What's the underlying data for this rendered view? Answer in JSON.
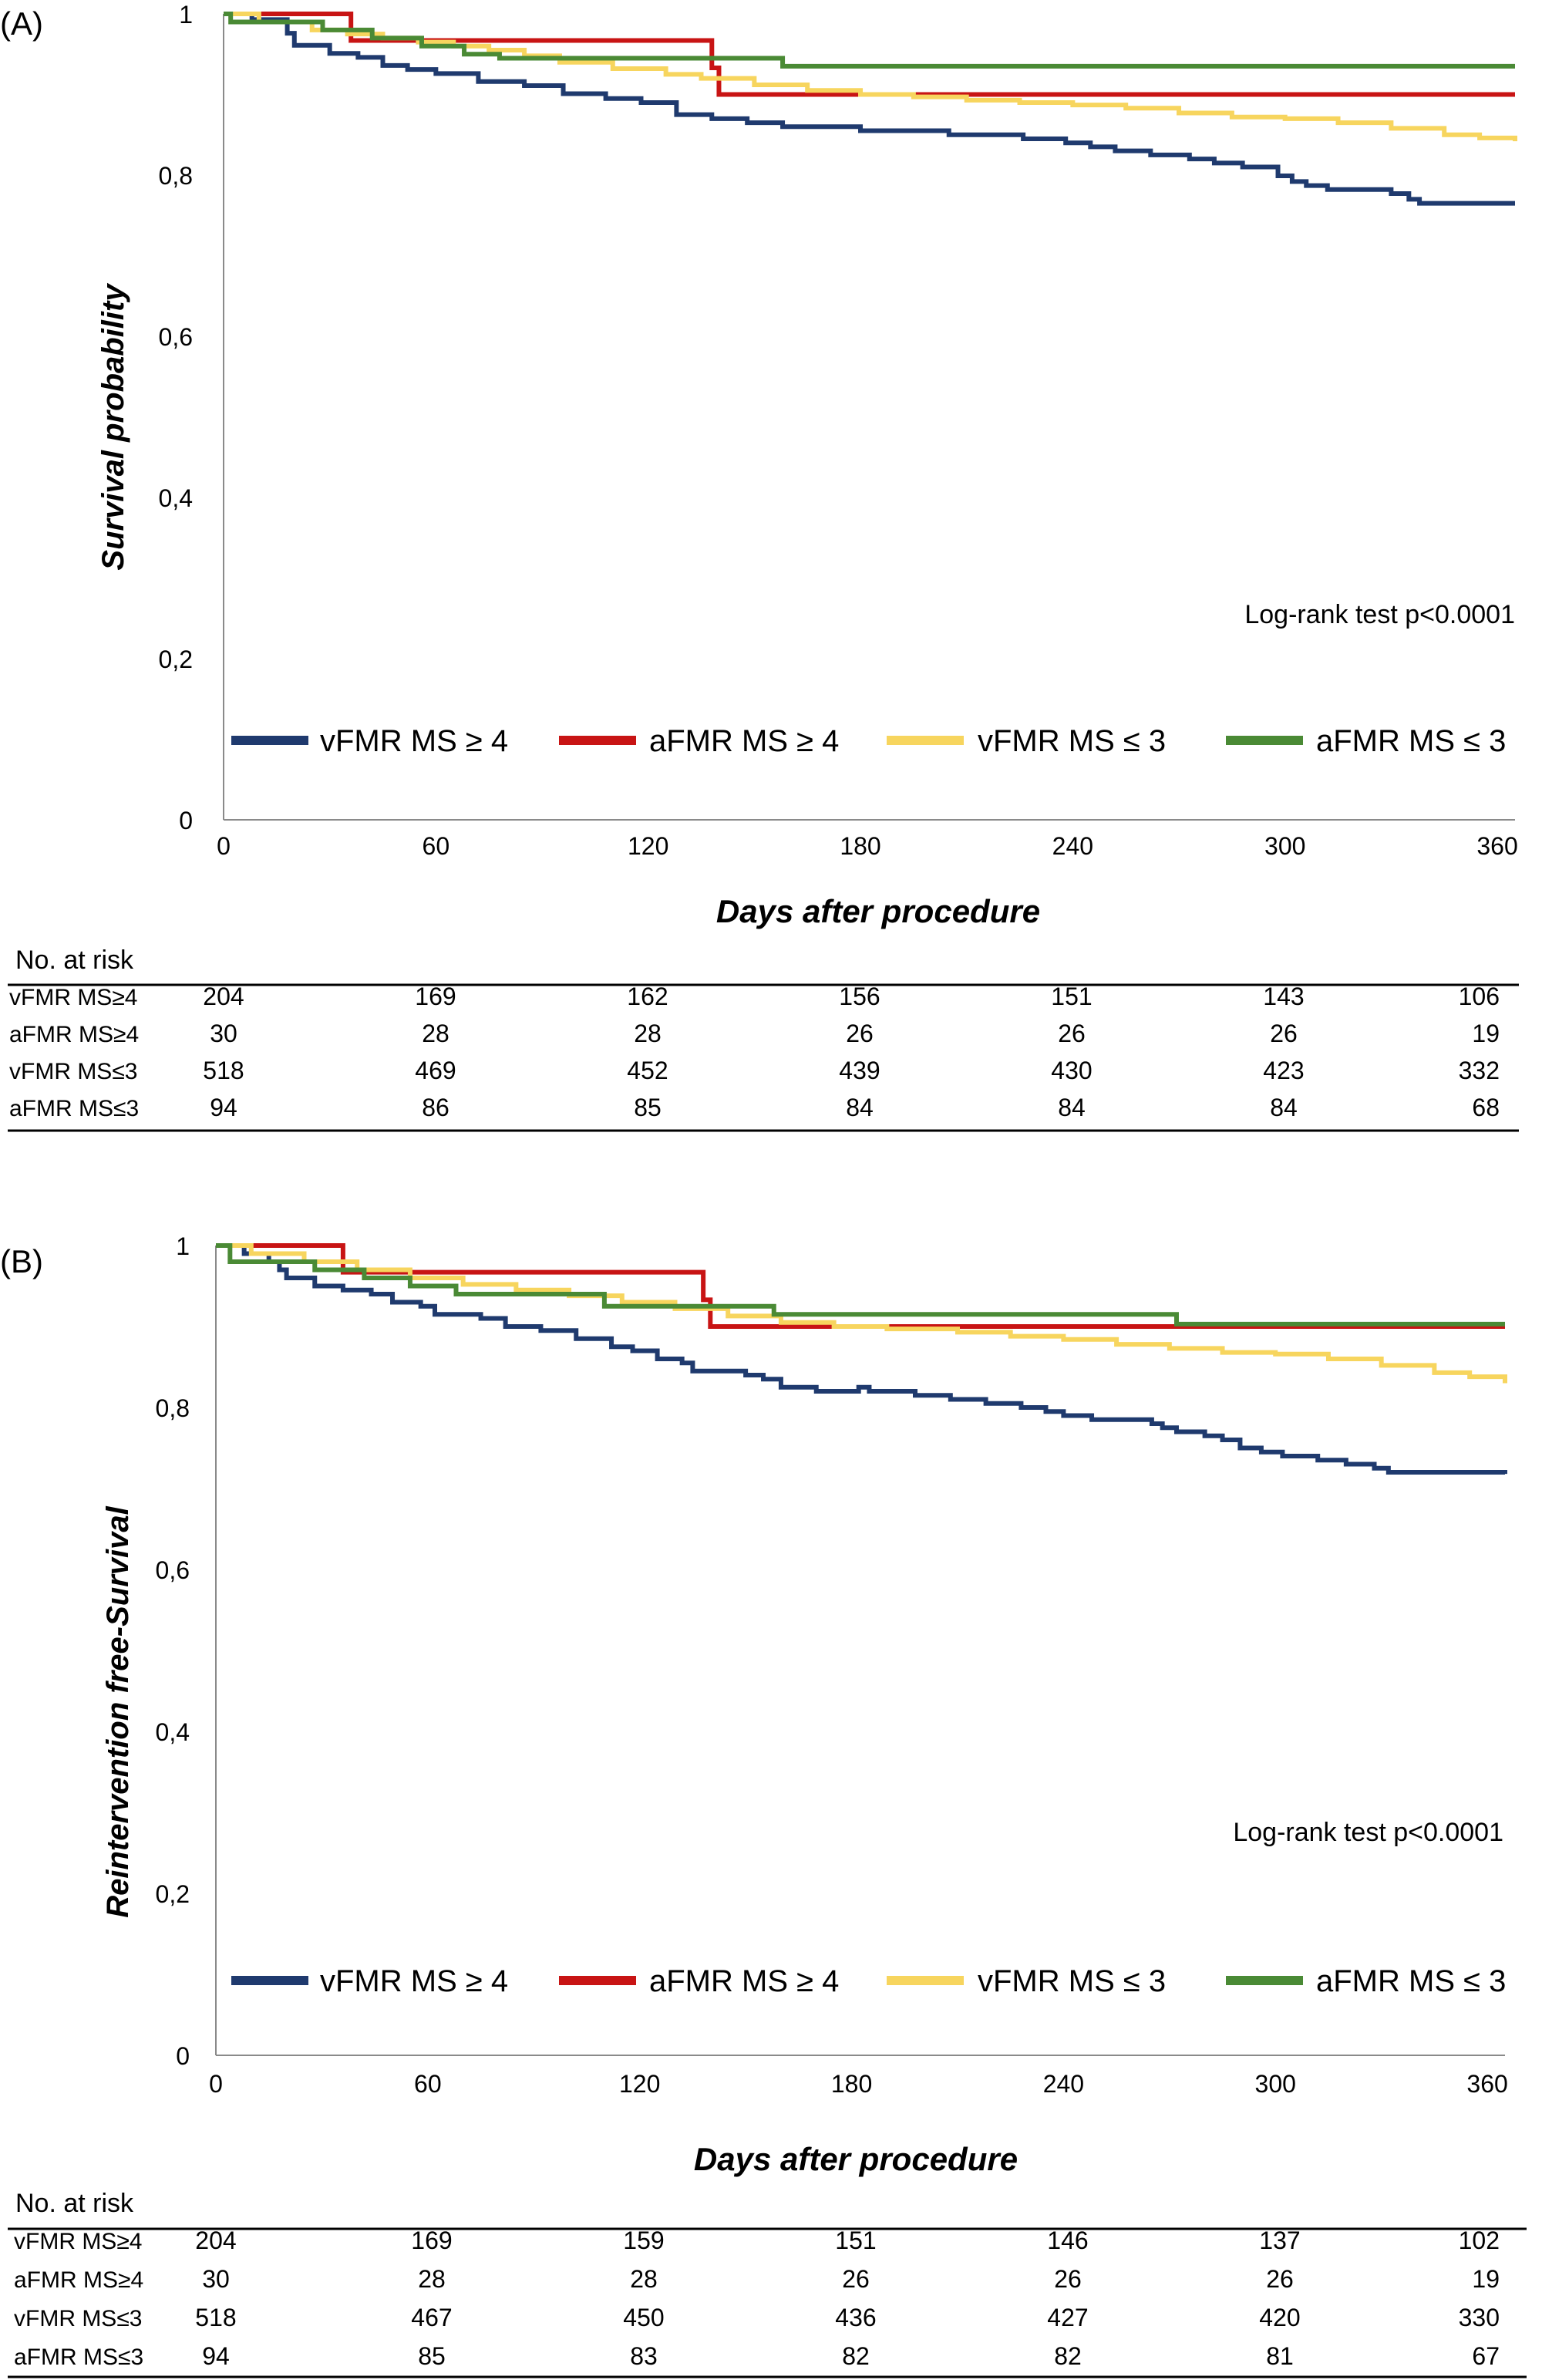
{
  "colors": {
    "vFMR_MS_ge4": "#1f3a6e",
    "aFMR_MS_ge4": "#c81414",
    "vFMR_MS_le3": "#f7d55e",
    "aFMR_MS_le3": "#4a8a35",
    "axis": "#8a8a8a",
    "text": "#000000"
  },
  "chart_data": [
    {
      "panel_label": "(A)",
      "type": "line",
      "step": true,
      "xlabel": "Days after procedure",
      "ylabel": "Survival probability",
      "xlim": [
        0,
        365
      ],
      "ylim": [
        0,
        1
      ],
      "x_ticks": [
        "0",
        "60",
        "120",
        "180",
        "240",
        "300",
        "360"
      ],
      "y_ticks": [
        "0",
        "0,2",
        "0,4",
        "0,6",
        "0,8",
        "1"
      ],
      "annotation": "Log-rank test p<0.0001",
      "legend_position": "bottom",
      "series": [
        {
          "name": "vFMR MS ≥ 4",
          "color_key": "vFMR_MS_ge4",
          "points": [
            [
              0,
              1
            ],
            [
              8,
              0.993
            ],
            [
              18,
              0.976
            ],
            [
              20,
              0.961
            ],
            [
              30,
              0.951
            ],
            [
              38,
              0.946
            ],
            [
              45,
              0.936
            ],
            [
              52,
              0.931
            ],
            [
              60,
              0.926
            ],
            [
              72,
              0.916
            ],
            [
              85,
              0.911
            ],
            [
              96,
              0.901
            ],
            [
              108,
              0.895
            ],
            [
              118,
              0.89
            ],
            [
              128,
              0.875
            ],
            [
              138,
              0.87
            ],
            [
              148,
              0.865
            ],
            [
              158,
              0.86
            ],
            [
              170,
              0.86
            ],
            [
              180,
              0.855
            ],
            [
              205,
              0.85
            ],
            [
              226,
              0.845
            ],
            [
              238,
              0.84
            ],
            [
              245,
              0.835
            ],
            [
              252,
              0.83
            ],
            [
              262,
              0.825
            ],
            [
              273,
              0.82
            ],
            [
              280,
              0.815
            ],
            [
              288,
              0.81
            ],
            [
              298,
              0.799
            ],
            [
              302,
              0.792
            ],
            [
              306,
              0.787
            ],
            [
              312,
              0.782
            ],
            [
              330,
              0.777
            ],
            [
              335,
              0.77
            ],
            [
              338,
              0.765
            ],
            [
              365,
              0.765
            ]
          ]
        },
        {
          "name": "aFMR MS ≥ 4",
          "color_key": "aFMR_MS_ge4",
          "points": [
            [
              0,
              1
            ],
            [
              36,
              1
            ],
            [
              36,
              0.967
            ],
            [
              138,
              0.967
            ],
            [
              138,
              0.933
            ],
            [
              140,
              0.933
            ],
            [
              140,
              0.9
            ],
            [
              365,
              0.9
            ]
          ]
        },
        {
          "name": "vFMR MS ≤ 3",
          "color_key": "vFMR_MS_le3",
          "points": [
            [
              0,
              1
            ],
            [
              10,
              0.99
            ],
            [
              25,
              0.98
            ],
            [
              35,
              0.975
            ],
            [
              45,
              0.97
            ],
            [
              55,
              0.965
            ],
            [
              65,
              0.96
            ],
            [
              75,
              0.955
            ],
            [
              85,
              0.948
            ],
            [
              95,
              0.94
            ],
            [
              110,
              0.932
            ],
            [
              125,
              0.925
            ],
            [
              135,
              0.92
            ],
            [
              150,
              0.912
            ],
            [
              165,
              0.905
            ],
            [
              180,
              0.9
            ],
            [
              195,
              0.897
            ],
            [
              210,
              0.893
            ],
            [
              225,
              0.89
            ],
            [
              240,
              0.887
            ],
            [
              255,
              0.883
            ],
            [
              270,
              0.877
            ],
            [
              285,
              0.872
            ],
            [
              300,
              0.87
            ],
            [
              315,
              0.865
            ],
            [
              330,
              0.858
            ],
            [
              345,
              0.85
            ],
            [
              355,
              0.846
            ],
            [
              365,
              0.842
            ]
          ]
        },
        {
          "name": "aFMR MS ≤ 3",
          "color_key": "aFMR_MS_le3",
          "points": [
            [
              0,
              1
            ],
            [
              2,
              0.99
            ],
            [
              28,
              0.98
            ],
            [
              42,
              0.97
            ],
            [
              56,
              0.96
            ],
            [
              68,
              0.95
            ],
            [
              78,
              0.945
            ],
            [
              158,
              0.945
            ],
            [
              158,
              0.935
            ],
            [
              365,
              0.935
            ]
          ]
        }
      ],
      "risk_table": {
        "header": "No. at risk",
        "rows": [
          {
            "label": "vFMR MS≥4",
            "values": [
              "204",
              "169",
              "162",
              "156",
              "151",
              "143",
              "106"
            ]
          },
          {
            "label": "aFMR MS≥4",
            "values": [
              "30",
              "28",
              "28",
              "26",
              "26",
              "26",
              "19"
            ]
          },
          {
            "label": "vFMR MS≤3",
            "values": [
              "518",
              "469",
              "452",
              "439",
              "430",
              "423",
              "332"
            ]
          },
          {
            "label": "aFMR MS≤3",
            "values": [
              "94",
              "86",
              "85",
              "84",
              "84",
              "84",
              "68"
            ]
          }
        ]
      }
    },
    {
      "panel_label": "(B)",
      "type": "line",
      "step": true,
      "xlabel": "Days after procedure",
      "ylabel": "Reintervention free-Survival",
      "xlim": [
        0,
        365
      ],
      "ylim": [
        0,
        1
      ],
      "x_ticks": [
        "0",
        "60",
        "120",
        "180",
        "240",
        "300",
        "360"
      ],
      "y_ticks": [
        "0",
        "0,2",
        "0,4",
        "0,6",
        "0,8",
        "1"
      ],
      "annotation": "Log-rank test p<0.0001",
      "legend_position": "bottom",
      "series": [
        {
          "name": "vFMR MS ≥ 4",
          "color_key": "vFMR_MS_ge4",
          "points": [
            [
              0,
              1
            ],
            [
              8,
              0.99
            ],
            [
              15,
              0.98
            ],
            [
              18,
              0.97
            ],
            [
              20,
              0.96
            ],
            [
              28,
              0.95
            ],
            [
              36,
              0.945
            ],
            [
              44,
              0.94
            ],
            [
              50,
              0.93
            ],
            [
              58,
              0.925
            ],
            [
              62,
              0.915
            ],
            [
              75,
              0.91
            ],
            [
              82,
              0.9
            ],
            [
              92,
              0.895
            ],
            [
              102,
              0.885
            ],
            [
              112,
              0.875
            ],
            [
              118,
              0.87
            ],
            [
              125,
              0.86
            ],
            [
              132,
              0.855
            ],
            [
              135,
              0.845
            ],
            [
              150,
              0.84
            ],
            [
              155,
              0.835
            ],
            [
              160,
              0.825
            ],
            [
              170,
              0.82
            ],
            [
              180,
              0.82
            ],
            [
              182,
              0.825
            ],
            [
              185,
              0.82
            ],
            [
              198,
              0.815
            ],
            [
              208,
              0.81
            ],
            [
              218,
              0.805
            ],
            [
              228,
              0.8
            ],
            [
              235,
              0.795
            ],
            [
              240,
              0.79
            ],
            [
              248,
              0.785
            ],
            [
              265,
              0.78
            ],
            [
              268,
              0.775
            ],
            [
              272,
              0.77
            ],
            [
              280,
              0.765
            ],
            [
              285,
              0.76
            ],
            [
              290,
              0.75
            ],
            [
              296,
              0.745
            ],
            [
              302,
              0.74
            ],
            [
              312,
              0.735
            ],
            [
              320,
              0.73
            ],
            [
              328,
              0.725
            ],
            [
              332,
              0.72
            ],
            [
              365,
              0.718
            ]
          ]
        },
        {
          "name": "aFMR MS ≥ 4",
          "color_key": "aFMR_MS_ge4",
          "points": [
            [
              0,
              1
            ],
            [
              36,
              1
            ],
            [
              36,
              0.967
            ],
            [
              138,
              0.967
            ],
            [
              138,
              0.933
            ],
            [
              140,
              0.933
            ],
            [
              140,
              0.9
            ],
            [
              365,
              0.9
            ]
          ]
        },
        {
          "name": "vFMR MS ≤ 3",
          "color_key": "vFMR_MS_le3",
          "points": [
            [
              0,
              1
            ],
            [
              10,
              0.99
            ],
            [
              25,
              0.98
            ],
            [
              40,
              0.97
            ],
            [
              55,
              0.96
            ],
            [
              70,
              0.952
            ],
            [
              85,
              0.945
            ],
            [
              100,
              0.938
            ],
            [
              115,
              0.93
            ],
            [
              130,
              0.922
            ],
            [
              145,
              0.913
            ],
            [
              160,
              0.905
            ],
            [
              175,
              0.9
            ],
            [
              190,
              0.897
            ],
            [
              210,
              0.893
            ],
            [
              225,
              0.888
            ],
            [
              240,
              0.884
            ],
            [
              255,
              0.878
            ],
            [
              270,
              0.873
            ],
            [
              285,
              0.868
            ],
            [
              300,
              0.866
            ],
            [
              315,
              0.86
            ],
            [
              330,
              0.852
            ],
            [
              345,
              0.843
            ],
            [
              355,
              0.838
            ],
            [
              365,
              0.83
            ]
          ]
        },
        {
          "name": "aFMR MS ≤ 3",
          "color_key": "aFMR_MS_le3",
          "points": [
            [
              0,
              1
            ],
            [
              4,
              0.98
            ],
            [
              28,
              0.97
            ],
            [
              42,
              0.96
            ],
            [
              55,
              0.95
            ],
            [
              68,
              0.94
            ],
            [
              110,
              0.93
            ],
            [
              110,
              0.925
            ],
            [
              158,
              0.925
            ],
            [
              158,
              0.915
            ],
            [
              272,
              0.915
            ],
            [
              272,
              0.903
            ],
            [
              365,
              0.903
            ]
          ]
        }
      ],
      "risk_table": {
        "header": "No. at risk",
        "rows": [
          {
            "label": "vFMR MS≥4",
            "values": [
              "204",
              "169",
              "159",
              "151",
              "146",
              "137",
              "102"
            ]
          },
          {
            "label": "aFMR MS≥4",
            "values": [
              "30",
              "28",
              "28",
              "26",
              "26",
              "26",
              "19"
            ]
          },
          {
            "label": "vFMR MS≤3",
            "values": [
              "518",
              "467",
              "450",
              "436",
              "427",
              "420",
              "330"
            ]
          },
          {
            "label": "aFMR MS≤3",
            "values": [
              "94",
              "85",
              "83",
              "82",
              "82",
              "81",
              "67"
            ]
          }
        ]
      }
    }
  ]
}
